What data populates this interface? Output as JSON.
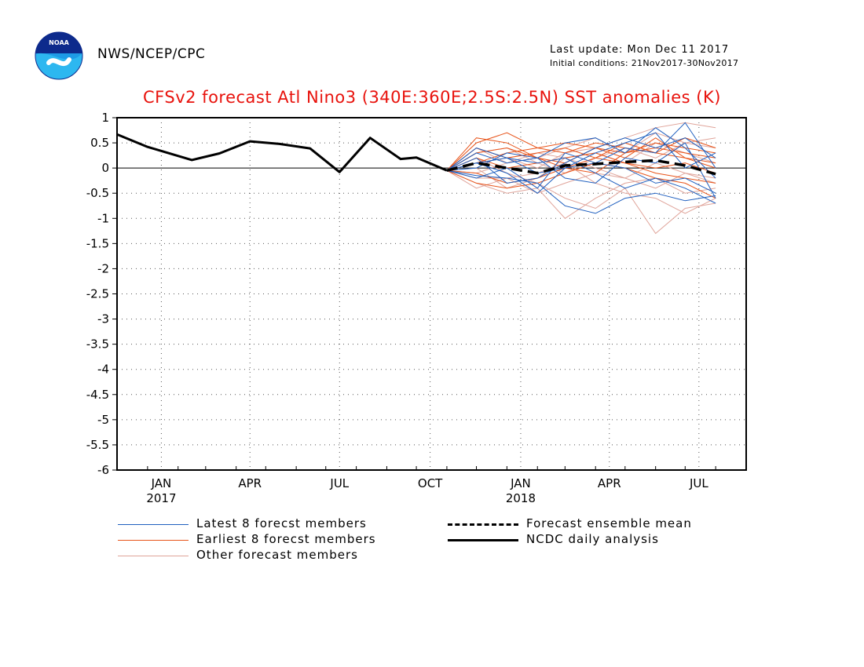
{
  "header": {
    "logo_text": "NOAA",
    "agency": "NWS/NCEP/CPC",
    "last_update": "Last update: Mon Dec 11 2017",
    "initial_conditions": "Initial conditions: 21Nov2017-30Nov2017"
  },
  "colors": {
    "title": "#e8120c",
    "latest_members": "#1f5fbf",
    "earliest_members": "#e8541a",
    "other_members": "#e0a49a",
    "ensemble_mean": "#000000",
    "analysis": "#000000"
  },
  "chart_data": {
    "type": "line",
    "title": "CFSv2 forecast Atl Nino3 (340E:360E;2.5S:2.5N) SST anomalies (K)",
    "ylim": [
      -6,
      1
    ],
    "yticks": [
      1,
      0.5,
      0,
      -0.5,
      -1,
      -1.5,
      -2,
      -2.5,
      -3,
      -3.5,
      -4,
      -4.5,
      -5,
      -5.5,
      -6
    ],
    "ytick_labels": [
      "1",
      "0.5",
      "0",
      "-0.5",
      "-1",
      "-1.5",
      "-2",
      "-2.5",
      "-3",
      "-3.5",
      "-4",
      "-4.5",
      "-5",
      "-5.5",
      "-6"
    ],
    "xlim": [
      "2016-12-01",
      "2018-09-01"
    ],
    "xticks": [
      {
        "date": "2017-01-15",
        "label": "JAN",
        "year": "2017"
      },
      {
        "date": "2017-04-15",
        "label": "APR",
        "year": ""
      },
      {
        "date": "2017-07-15",
        "label": "JUL",
        "year": ""
      },
      {
        "date": "2017-10-15",
        "label": "OCT",
        "year": ""
      },
      {
        "date": "2018-01-15",
        "label": "JAN",
        "year": "2018"
      },
      {
        "date": "2018-04-15",
        "label": "APR",
        "year": ""
      },
      {
        "date": "2018-07-15",
        "label": "JUL",
        "year": ""
      }
    ],
    "grid": true,
    "zero_line": true,
    "legend_placement": "bottom",
    "ncdc_analysis": {
      "name": "NCDC daily analysis",
      "x": [
        "2016-12-01",
        "2017-01-01",
        "2017-02-15",
        "2017-03-15",
        "2017-04-15",
        "2017-05-15",
        "2017-06-15",
        "2017-07-15",
        "2017-08-15",
        "2017-09-15",
        "2017-10-01",
        "2017-11-01"
      ],
      "y": [
        0.67,
        0.42,
        0.16,
        0.29,
        0.53,
        0.48,
        0.39,
        -0.08,
        0.6,
        0.18,
        0.21,
        -0.05
      ]
    },
    "ensemble_mean": {
      "name": "Forecast ensemble mean",
      "x": [
        "2017-11-01",
        "2017-12-01",
        "2018-01-01",
        "2018-02-01",
        "2018-03-01",
        "2018-04-01",
        "2018-05-01",
        "2018-06-01",
        "2018-07-01",
        "2018-08-01"
      ],
      "y": [
        -0.05,
        0.1,
        0.0,
        -0.1,
        0.05,
        0.08,
        0.12,
        0.15,
        0.05,
        -0.12
      ]
    },
    "members_x": [
      "2017-11-01",
      "2017-12-01",
      "2018-01-01",
      "2018-02-01",
      "2018-03-01",
      "2018-04-01",
      "2018-05-01",
      "2018-06-01",
      "2018-07-01",
      "2018-08-01"
    ],
    "latest_members": {
      "name": "Latest 8 forecst members",
      "values": [
        [
          -0.05,
          -0.15,
          -0.2,
          -0.3,
          -0.75,
          -0.9,
          -0.6,
          -0.5,
          -0.65,
          -0.55
        ],
        [
          -0.05,
          0.1,
          0.2,
          -0.1,
          0.0,
          0.1,
          0.4,
          0.3,
          0.9,
          0.0
        ],
        [
          -0.05,
          0.3,
          0.1,
          0.2,
          0.5,
          0.6,
          0.3,
          0.8,
          0.4,
          -0.2
        ],
        [
          -0.05,
          -0.2,
          0.0,
          -0.4,
          0.3,
          0.1,
          0.0,
          -0.3,
          -0.2,
          -0.5
        ],
        [
          -0.05,
          0.2,
          -0.3,
          -0.2,
          0.1,
          0.4,
          0.6,
          0.4,
          0.6,
          0.2
        ],
        [
          -0.05,
          0.0,
          0.3,
          0.2,
          -0.2,
          -0.3,
          0.2,
          0.1,
          0.5,
          -0.6
        ],
        [
          -0.05,
          0.1,
          -0.1,
          -0.5,
          0.0,
          0.3,
          0.5,
          0.7,
          0.0,
          0.3
        ],
        [
          -0.05,
          0.4,
          0.2,
          0.1,
          0.2,
          -0.1,
          -0.4,
          -0.2,
          -0.4,
          -0.7
        ]
      ]
    },
    "earliest_members": {
      "name": "Earliest 8 forecst members",
      "values": [
        [
          -0.05,
          0.5,
          0.7,
          0.4,
          0.3,
          0.5,
          0.4,
          0.3,
          0.2,
          0.1
        ],
        [
          -0.05,
          0.3,
          0.4,
          0.2,
          0.1,
          0.4,
          0.3,
          0.5,
          0.4,
          0.3
        ],
        [
          -0.05,
          -0.1,
          -0.3,
          -0.2,
          0.0,
          0.2,
          0.1,
          -0.1,
          -0.2,
          -0.3
        ],
        [
          -0.05,
          0.4,
          0.2,
          0.3,
          0.4,
          0.2,
          0.5,
          0.3,
          0.6,
          0.4
        ],
        [
          -0.05,
          0.2,
          0.0,
          0.1,
          0.2,
          0.3,
          0.1,
          0.0,
          0.1,
          -0.1
        ],
        [
          -0.05,
          -0.3,
          -0.4,
          -0.3,
          -0.1,
          0.1,
          0.0,
          -0.2,
          -0.3,
          -0.6
        ],
        [
          -0.05,
          0.1,
          0.3,
          0.4,
          0.5,
          0.4,
          0.2,
          0.6,
          0.2,
          0.0
        ],
        [
          -0.05,
          0.6,
          0.5,
          0.2,
          0.0,
          -0.1,
          0.3,
          0.4,
          0.3,
          0.2
        ]
      ]
    },
    "other_members": {
      "name": "Other forecast members",
      "values": [
        [
          -0.05,
          0.2,
          -0.1,
          -0.3,
          -0.6,
          -0.8,
          -0.4,
          -1.3,
          -0.8,
          -0.7
        ],
        [
          -0.05,
          -0.3,
          -0.5,
          -0.4,
          -1.0,
          -0.6,
          -0.3,
          -0.2,
          -0.5,
          -0.4
        ],
        [
          -0.05,
          0.1,
          0.2,
          0.0,
          0.3,
          0.4,
          0.6,
          0.8,
          0.9,
          0.8
        ],
        [
          -0.05,
          -0.1,
          0.1,
          0.3,
          0.2,
          0.0,
          -0.2,
          0.1,
          -0.1,
          -0.3
        ],
        [
          -0.05,
          0.3,
          0.4,
          0.1,
          -0.1,
          0.2,
          0.4,
          0.2,
          0.5,
          0.6
        ],
        [
          -0.05,
          -0.2,
          -0.2,
          -0.1,
          0.1,
          -0.3,
          -0.5,
          -0.6,
          -0.9,
          -0.6
        ],
        [
          -0.05,
          0.0,
          -0.4,
          -0.2,
          0.2,
          0.3,
          0.1,
          0.5,
          0.3,
          0.1
        ],
        [
          -0.05,
          0.4,
          0.1,
          0.2,
          0.4,
          0.6,
          0.3,
          0.7,
          0.5,
          0.4
        ],
        [
          -0.05,
          -0.4,
          -0.2,
          -0.5,
          -0.3,
          -0.1,
          -0.2,
          -0.4,
          -0.1,
          -0.2
        ]
      ]
    }
  }
}
